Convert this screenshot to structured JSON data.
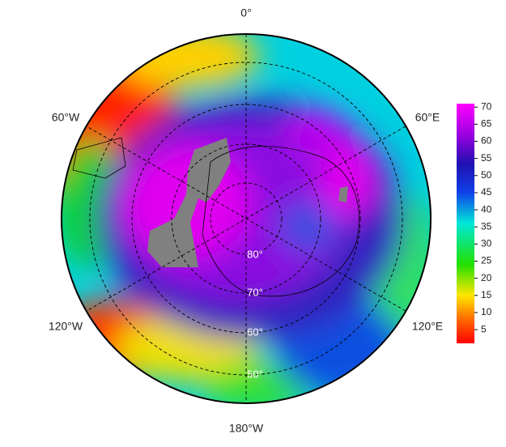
{
  "map": {
    "meridian_labels": [
      "0°",
      "60°E",
      "120°E",
      "180°W",
      "120°W",
      "60°W"
    ],
    "latitude_labels": [
      "80°",
      "70°",
      "60°",
      "50°"
    ]
  },
  "colorbar": {
    "lim": [
      1,
      71
    ],
    "ticks": [
      5,
      10,
      15,
      20,
      25,
      30,
      35,
      40,
      45,
      50,
      55,
      60,
      65,
      70
    ]
  }
}
